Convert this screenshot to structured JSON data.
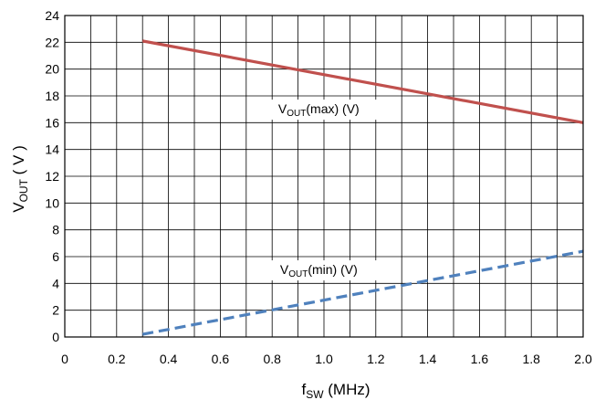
{
  "chart_data": {
    "type": "line",
    "title": "",
    "xlabel": {
      "main": "f",
      "sub": "SW",
      "suffix": " (MHz)"
    },
    "ylabel": {
      "main": "V",
      "sub": "OUT",
      "suffix": " ( V )"
    },
    "xlim": [
      0,
      2.0
    ],
    "ylim": [
      0,
      24
    ],
    "x_ticks": [
      "0",
      "0.2",
      "0.4",
      "0.6",
      "0.8",
      "1.0",
      "1.2",
      "1.4",
      "1.6",
      "1.8",
      "2.0"
    ],
    "y_ticks": [
      "0",
      "2",
      "4",
      "6",
      "8",
      "10",
      "12",
      "14",
      "16",
      "18",
      "20",
      "22",
      "24"
    ],
    "grid": true,
    "series": [
      {
        "label_main": "V",
        "label_sub": "OUT",
        "label_suffix": "(max) (V)",
        "color": "#c0504d",
        "dash": "solid",
        "x": [
          0.3,
          2.0
        ],
        "y": [
          22.1,
          16.0
        ]
      },
      {
        "label_main": "V",
        "label_sub": "OUT",
        "label_suffix": "(min) (V)",
        "color": "#4f81bd",
        "dash": "dashed",
        "x": [
          0.3,
          2.0
        ],
        "y": [
          0.2,
          6.4
        ]
      }
    ]
  }
}
